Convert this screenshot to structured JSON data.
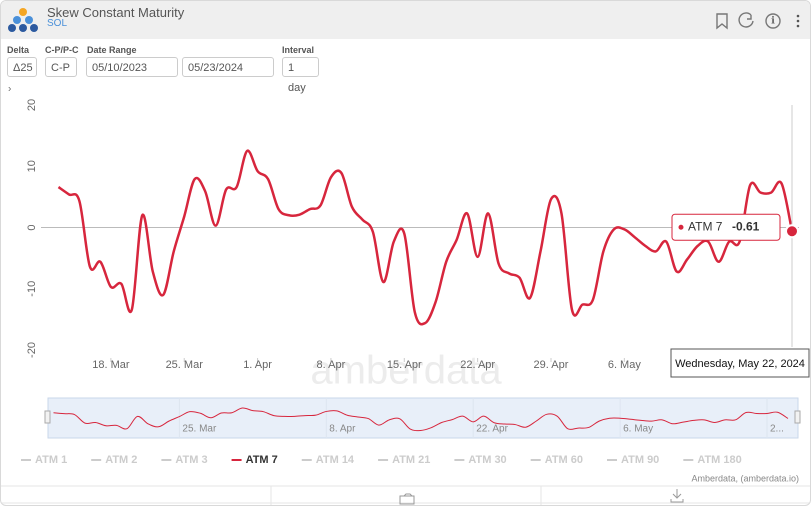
{
  "header": {
    "title": "Skew Constant Maturity",
    "subtitle": "SOL"
  },
  "controls": {
    "delta": {
      "label": "Delta",
      "value": "Δ25"
    },
    "cp": {
      "label": "C-P/P-C",
      "value": "C-P"
    },
    "date_range": {
      "label": "Date Range",
      "start": "05/10/2023",
      "end": "05/23/2024"
    },
    "interval": {
      "label": "Interval",
      "value": "1 day"
    }
  },
  "chart_data": {
    "type": "line",
    "watermark": "amberdata",
    "credit": "Amberdata, (amberdata.io)",
    "tooltip_date": "Wednesday, May 22, 2024",
    "x": [
      "2024-03-13",
      "2024-03-14",
      "2024-03-15",
      "2024-03-16",
      "2024-03-17",
      "2024-03-18",
      "2024-03-19",
      "2024-03-20",
      "2024-03-21",
      "2024-03-22",
      "2024-03-23",
      "2024-03-24",
      "2024-03-25",
      "2024-03-26",
      "2024-03-27",
      "2024-03-28",
      "2024-03-29",
      "2024-03-30",
      "2024-03-31",
      "2024-04-01",
      "2024-04-02",
      "2024-04-03",
      "2024-04-04",
      "2024-04-05",
      "2024-04-06",
      "2024-04-07",
      "2024-04-08",
      "2024-04-09",
      "2024-04-10",
      "2024-04-11",
      "2024-04-12",
      "2024-04-13",
      "2024-04-14",
      "2024-04-15",
      "2024-04-16",
      "2024-04-17",
      "2024-04-18",
      "2024-04-19",
      "2024-04-20",
      "2024-04-21",
      "2024-04-22",
      "2024-04-23",
      "2024-04-24",
      "2024-04-25",
      "2024-04-26",
      "2024-04-27",
      "2024-04-28",
      "2024-04-29",
      "2024-04-30",
      "2024-05-01",
      "2024-05-02",
      "2024-05-03",
      "2024-05-04",
      "2024-05-05",
      "2024-05-06",
      "2024-05-07",
      "2024-05-08",
      "2024-05-09",
      "2024-05-10",
      "2024-05-11",
      "2024-05-12",
      "2024-05-13",
      "2024-05-14",
      "2024-05-15",
      "2024-05-16",
      "2024-05-17",
      "2024-05-18",
      "2024-05-19",
      "2024-05-20",
      "2024-05-21",
      "2024-05-22"
    ],
    "xlim": [
      "2024-03-12",
      "2024-05-22"
    ],
    "xticks": [
      {
        "value": "2024-03-18",
        "label": "18. Mar"
      },
      {
        "value": "2024-03-25",
        "label": "25. Mar"
      },
      {
        "value": "2024-04-01",
        "label": "1. Apr"
      },
      {
        "value": "2024-04-08",
        "label": "8. Apr"
      },
      {
        "value": "2024-04-15",
        "label": "15. Apr"
      },
      {
        "value": "2024-04-22",
        "label": "22. Apr"
      },
      {
        "value": "2024-04-29",
        "label": "29. Apr"
      },
      {
        "value": "2024-05-06",
        "label": "6. May"
      }
    ],
    "navigator_xticks": [
      {
        "value": "2024-03-25",
        "label": "25. Mar"
      },
      {
        "value": "2024-04-08",
        "label": "8. Apr"
      },
      {
        "value": "2024-04-22",
        "label": "22. Apr"
      },
      {
        "value": "2024-05-06",
        "label": "6. May"
      },
      {
        "value": "2024-05-20",
        "label": "2..."
      }
    ],
    "ylim": [
      -20,
      20
    ],
    "yticks": [
      -20,
      -10,
      0,
      10,
      20
    ],
    "grid": false,
    "series": [
      {
        "name": "ATM 1",
        "visible": false
      },
      {
        "name": "ATM 2",
        "visible": false
      },
      {
        "name": "ATM 3",
        "visible": false
      },
      {
        "name": "ATM 7",
        "visible": true,
        "color": "#d7263d",
        "values": [
          6.6,
          5.4,
          4.3,
          -6.4,
          -5.6,
          -9.7,
          -9.2,
          -13.4,
          2.0,
          -7.2,
          -11.0,
          -3.9,
          1.8,
          7.9,
          5.9,
          0.3,
          6.2,
          6.6,
          12.5,
          9.2,
          7.9,
          3.0,
          2.0,
          2.1,
          3.0,
          3.6,
          8.2,
          8.9,
          3.4,
          1.3,
          -0.7,
          -8.9,
          -2.3,
          -1.0,
          -13.8,
          -15.6,
          -12.1,
          -5.6,
          -2.0,
          2.3,
          -4.8,
          2.3,
          -5.9,
          -7.5,
          -8.2,
          -11.5,
          -3.9,
          4.6,
          2.3,
          -13.4,
          -12.6,
          -11.8,
          -3.9,
          -0.3,
          -0.3,
          -1.6,
          -3.0,
          -3.9,
          -2.3,
          -7.2,
          -5.2,
          -3.0,
          -2.3,
          -5.6,
          -2.3,
          -2.3,
          6.9,
          5.7,
          5.7,
          7.2,
          -0.61
        ]
      },
      {
        "name": "ATM 14",
        "visible": false
      },
      {
        "name": "ATM 21",
        "visible": false
      },
      {
        "name": "ATM 30",
        "visible": false
      },
      {
        "name": "ATM 60",
        "visible": false
      },
      {
        "name": "ATM 90",
        "visible": false
      },
      {
        "name": "ATM 180",
        "visible": false
      }
    ]
  }
}
